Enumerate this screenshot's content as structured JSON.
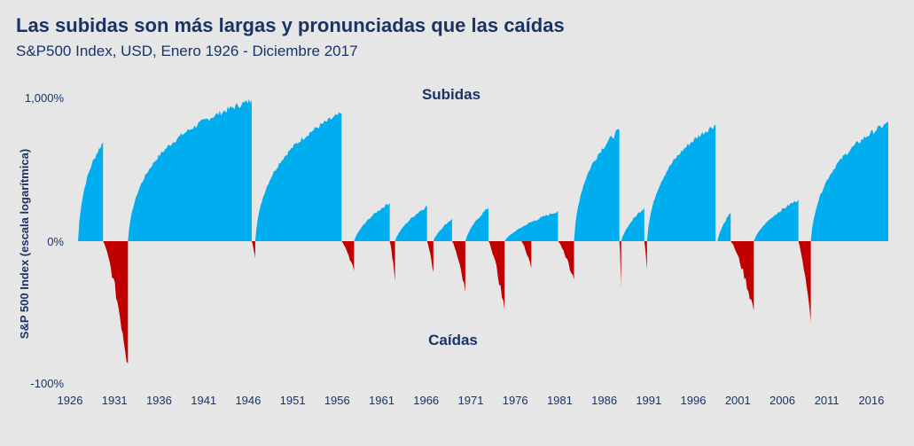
{
  "chart_title": "Las subidas son más largas y pronunciadas que las caídas",
  "chart_subtitle": "S&P500 Index, USD, Enero 1926 - Diciembre 2017",
  "colors": {
    "up": "#00aeef",
    "down": "#c00000",
    "text": "#1a3366",
    "background": "#e6e6e6"
  },
  "chart_data": {
    "type": "area",
    "title": "Las subidas son más largas y pronunciadas que las caídas",
    "subtitle": "S&P500 Index, USD, Enero 1926 - Diciembre 2017",
    "ylabel": "S&P 500 Index (escala logarítmica)",
    "xlabel": "",
    "yscale": "log",
    "ylim": [
      -100,
      1000
    ],
    "yticks": [
      "1,000%",
      "0%",
      "-100%"
    ],
    "xlim": [
      1926,
      2018
    ],
    "xticks": [
      "1926",
      "1931",
      "1936",
      "1941",
      "1946",
      "1951",
      "1956",
      "1961",
      "1966",
      "1971",
      "1976",
      "1981",
      "1986",
      "1991",
      "1996",
      "2001",
      "2006",
      "2011",
      "2016"
    ],
    "annotations": [
      "Subidas",
      "Caídas"
    ],
    "grid": false,
    "series": [
      {
        "name": "Subidas",
        "color": "#00aeef",
        "segments": [
          {
            "start": 1926.9,
            "end": 1929.7,
            "peak_pct": 420
          },
          {
            "start": 1932.5,
            "end": 1946.4,
            "peak_pct": 950
          },
          {
            "start": 1946.8,
            "end": 1956.5,
            "peak_pct": 740
          },
          {
            "start": 1957.9,
            "end": 1961.9,
            "peak_pct": 90
          },
          {
            "start": 1962.5,
            "end": 1966.1,
            "peak_pct": 80
          },
          {
            "start": 1966.8,
            "end": 1968.9,
            "peak_pct": 45
          },
          {
            "start": 1970.4,
            "end": 1973.0,
            "peak_pct": 75
          },
          {
            "start": 1974.8,
            "end": 1980.8,
            "peak_pct": 65
          },
          {
            "start": 1982.6,
            "end": 1987.7,
            "peak_pct": 540
          },
          {
            "start": 1987.9,
            "end": 1990.5,
            "peak_pct": 75
          },
          {
            "start": 1990.8,
            "end": 1998.5,
            "peak_pct": 600
          },
          {
            "start": 1998.7,
            "end": 2000.2,
            "peak_pct": 60
          },
          {
            "start": 2002.8,
            "end": 2007.8,
            "peak_pct": 100
          },
          {
            "start": 2009.2,
            "end": 2017.9,
            "peak_pct": 620
          }
        ]
      },
      {
        "name": "Caídas",
        "color": "#c00000",
        "segments": [
          {
            "start": 1929.7,
            "end": 1932.5,
            "trough_pct": -86
          },
          {
            "start": 1946.4,
            "end": 1946.8,
            "trough_pct": -12
          },
          {
            "start": 1956.5,
            "end": 1957.9,
            "trough_pct": -21
          },
          {
            "start": 1961.9,
            "end": 1962.5,
            "trough_pct": -28
          },
          {
            "start": 1966.1,
            "end": 1966.8,
            "trough_pct": -22
          },
          {
            "start": 1968.9,
            "end": 1970.4,
            "trough_pct": -36
          },
          {
            "start": 1973.0,
            "end": 1974.8,
            "trough_pct": -48
          },
          {
            "start": 1976.7,
            "end": 1977.8,
            "trough_pct": -19
          },
          {
            "start": 1980.8,
            "end": 1982.6,
            "trough_pct": -27
          },
          {
            "start": 1987.7,
            "end": 1987.9,
            "trough_pct": -34
          },
          {
            "start": 1990.5,
            "end": 1990.8,
            "trough_pct": -20
          },
          {
            "start": 2000.2,
            "end": 2002.8,
            "trough_pct": -49
          },
          {
            "start": 2007.8,
            "end": 2009.2,
            "trough_pct": -57
          }
        ]
      }
    ]
  }
}
